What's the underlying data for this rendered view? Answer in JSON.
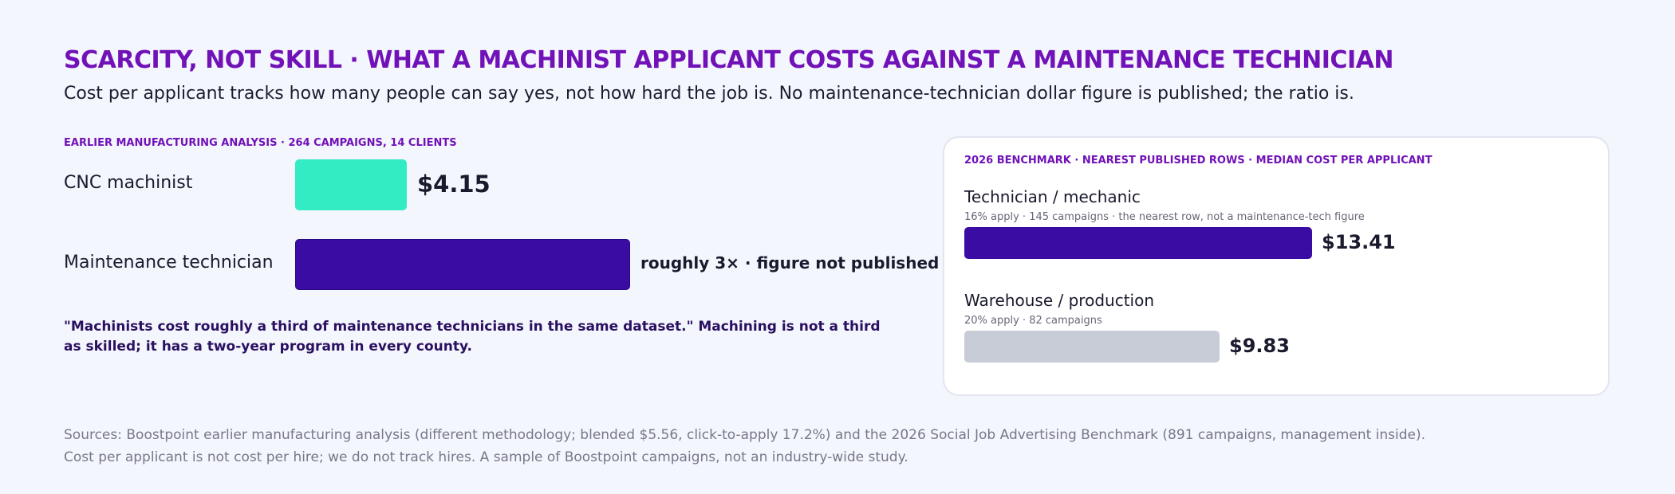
{
  "title": "SCARCITY, NOT SKILL · WHAT A MACHINIST APPLICANT COSTS AGAINST A MAINTENANCE TECHNICIAN",
  "subtitle": "Cost per applicant tracks how many people can say yes, not how hard the job is. No maintenance-technician dollar figure is published; the ratio is.",
  "quote": "\"Machinists cost roughly a third of maintenance technicians in the same dataset.\" Machining is not a third as skilled; it has a two-year program in every county.",
  "footnotes": [
    "Sources: Boostpoint earlier manufacturing analysis (different methodology; blended $5.56, click-to-apply 17.2%) and the 2026 Social Job Advertising Benchmark (891 campaigns, management inside).",
    "Cost per applicant is not cost per hire; we do not track hires. A sample of Boostpoint campaigns, not an industry-wide study."
  ],
  "chart_data": [
    {
      "type": "bar",
      "orientation": "horizontal",
      "label": "EARLIER MANUFACTURING ANALYSIS · 264 CAMPAIGNS, 14 CLIENTS",
      "categories": [
        "CNC machinist",
        "Maintenance technician"
      ],
      "values": [
        4.15,
        12.45
      ],
      "value_labels": [
        "$4.15",
        "roughly 3× · figure not published"
      ],
      "colors": [
        "#33ecc4",
        "#3b0ca3"
      ]
    },
    {
      "type": "bar",
      "orientation": "horizontal",
      "label": "2026 BENCHMARK · NEAREST PUBLISHED ROWS · MEDIAN COST PER APPLICANT",
      "categories": [
        "Technician / mechanic",
        "Warehouse / production"
      ],
      "notes": [
        "16% apply · 145 campaigns · the nearest row, not a maintenance-tech figure",
        "20% apply · 82 campaigns"
      ],
      "values": [
        13.41,
        9.83
      ],
      "value_labels": [
        "$13.41",
        "$9.83"
      ],
      "colors": [
        "#3b0ca3",
        "#c8ccd6"
      ]
    }
  ]
}
